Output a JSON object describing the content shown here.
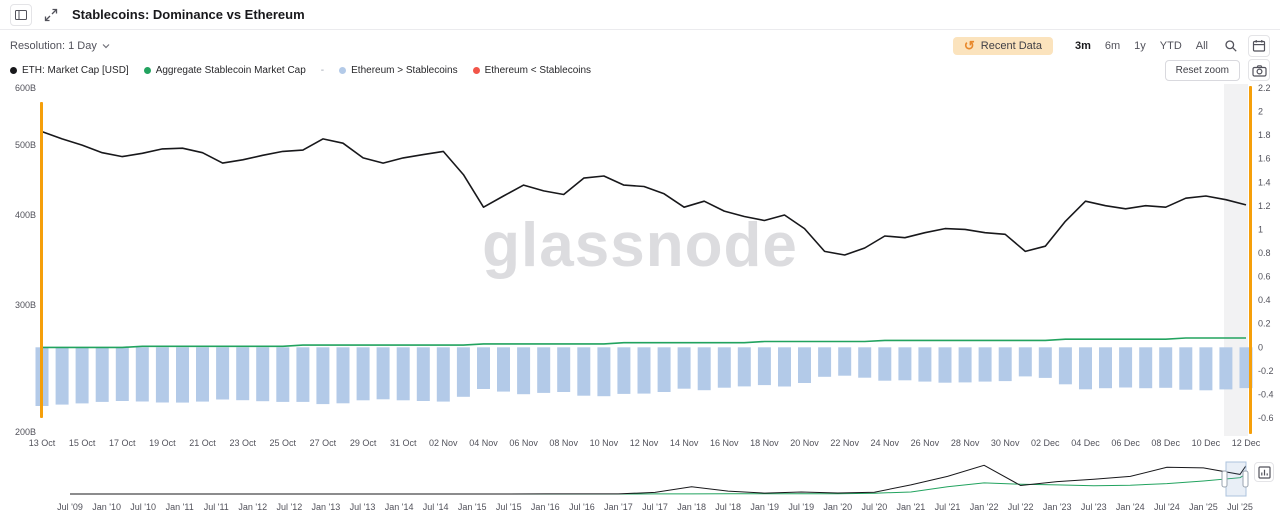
{
  "window": {
    "title": "Stablecoins: Dominance vs Ethereum"
  },
  "toolbar": {
    "resolution_label": "Resolution: 1 Day",
    "recent_data_label": "Recent Data",
    "ranges": [
      "3m",
      "6m",
      "1y",
      "YTD",
      "All"
    ],
    "active_range": "3m"
  },
  "legend": {
    "items": [
      {
        "label": "ETH: Market Cap [USD]",
        "color": "#18181b"
      },
      {
        "label": "Aggregate Stablecoin Market Cap",
        "color": "#22a35f"
      },
      {
        "label": "-",
        "color": "#9ca3af"
      },
      {
        "label": "Ethereum > Stablecoins",
        "color": "#b3cae8"
      },
      {
        "label": "Ethereum < Stablecoins",
        "color": "#f25549"
      }
    ]
  },
  "buttons": {
    "reset_zoom": "Reset zoom"
  },
  "watermark": "glassnode",
  "colors": {
    "accent_orange": "#f59f0a",
    "pill_bg": "#fbe3bd",
    "bar_blue": "#b3cae8",
    "line_green": "#22a35f",
    "line_black": "#18181b",
    "tick_gray": "#52525b",
    "band_gray": "#f2f2f3"
  },
  "chart_data": {
    "type": "line+bar",
    "title": "Stablecoins: Dominance vs Ethereum",
    "main": {
      "dates": [
        "13 Oct",
        "14 Oct",
        "15 Oct",
        "16 Oct",
        "17 Oct",
        "18 Oct",
        "19 Oct",
        "20 Oct",
        "21 Oct",
        "22 Oct",
        "23 Oct",
        "24 Oct",
        "25 Oct",
        "26 Oct",
        "27 Oct",
        "28 Oct",
        "29 Oct",
        "30 Oct",
        "31 Oct",
        "01 Nov",
        "02 Nov",
        "03 Nov",
        "04 Nov",
        "05 Nov",
        "06 Nov",
        "07 Nov",
        "08 Nov",
        "09 Nov",
        "10 Nov",
        "11 Nov",
        "12 Nov",
        "13 Nov",
        "14 Nov",
        "15 Nov",
        "16 Nov",
        "17 Nov",
        "18 Nov",
        "19 Nov",
        "20 Nov",
        "21 Nov",
        "22 Nov",
        "23 Nov",
        "24 Nov",
        "25 Nov",
        "26 Nov",
        "27 Nov",
        "28 Nov",
        "29 Nov",
        "30 Nov",
        "01 Dec",
        "02 Dec",
        "03 Dec",
        "04 Dec",
        "05 Dec",
        "06 Dec",
        "07 Dec",
        "08 Dec",
        "09 Dec",
        "10 Dec",
        "11 Dec",
        "12 Dec"
      ],
      "x_tick_step": 2,
      "left_axis": {
        "scale": "log",
        "unit": "USD billions",
        "tick_labels": [
          "600B",
          "500B",
          "400B",
          "300B",
          "200B"
        ],
        "tick_values": [
          600,
          500,
          400,
          300,
          200
        ],
        "min": 200,
        "max": 600
      },
      "right_axis": {
        "scale": "linear",
        "tick_values": [
          2.2,
          2,
          1.8,
          1.6,
          1.4,
          1.2,
          1,
          0.8,
          0.6,
          0.4,
          0.2,
          0,
          -0.2,
          -0.4,
          -0.6
        ],
        "min": -0.6,
        "max": 2.2
      },
      "series": [
        {
          "name": "ETH: Market Cap [USD]",
          "type": "line",
          "axis": "left",
          "color": "#18181b",
          "values": [
            522,
            510,
            500,
            488,
            482,
            487,
            494,
            495,
            488,
            472,
            477,
            484,
            490,
            492,
            510,
            503,
            480,
            472,
            480,
            485,
            490,
            455,
            410,
            425,
            440,
            432,
            427,
            450,
            453,
            440,
            438,
            428,
            410,
            418,
            405,
            398,
            393,
            400,
            383,
            356,
            352,
            360,
            374,
            372,
            378,
            383,
            382,
            378,
            376,
            356,
            362,
            392,
            418,
            412,
            408,
            412,
            410,
            422,
            425,
            420,
            413
          ]
        },
        {
          "name": "Aggregate Stablecoin Market Cap",
          "type": "line",
          "axis": "left",
          "color": "#22a35f",
          "values": [
            262,
            262,
            262,
            262,
            262,
            263,
            263,
            263,
            263,
            263,
            263,
            263,
            263,
            264,
            264,
            264,
            264,
            264,
            264,
            264,
            264,
            264,
            265,
            265,
            265,
            265,
            265,
            265,
            265,
            266,
            266,
            266,
            266,
            266,
            266,
            266,
            267,
            267,
            267,
            267,
            267,
            267,
            268,
            268,
            268,
            268,
            268,
            268,
            268,
            268,
            268,
            269,
            269,
            269,
            269,
            269,
            269,
            270,
            270,
            270,
            270
          ]
        },
        {
          "name": "Ethereum > Stablecoins",
          "type": "bar",
          "axis": "right",
          "color": "#b3cae8",
          "values": [
            -0.498,
            -0.486,
            -0.476,
            -0.463,
            -0.456,
            -0.46,
            -0.468,
            -0.469,
            -0.461,
            -0.443,
            -0.449,
            -0.457,
            -0.463,
            -0.463,
            -0.482,
            -0.475,
            -0.45,
            -0.441,
            -0.45,
            -0.456,
            -0.461,
            -0.42,
            -0.354,
            -0.376,
            -0.398,
            -0.387,
            -0.379,
            -0.411,
            -0.415,
            -0.395,
            -0.393,
            -0.379,
            -0.351,
            -0.364,
            -0.343,
            -0.332,
            -0.321,
            -0.333,
            -0.303,
            -0.25,
            -0.241,
            -0.258,
            -0.283,
            -0.28,
            -0.291,
            -0.3,
            -0.298,
            -0.291,
            -0.287,
            -0.247,
            -0.26,
            -0.314,
            -0.356,
            -0.347,
            -0.341,
            -0.347,
            -0.344,
            -0.36,
            -0.365,
            -0.357,
            -0.346
          ]
        },
        {
          "name": "Ethereum < Stablecoins",
          "type": "bar",
          "axis": "right",
          "color": "#f25549",
          "values": []
        }
      ]
    },
    "navigator": {
      "labels": [
        "Jul '09",
        "Jan '10",
        "Jul '10",
        "Jan '11",
        "Jul '11",
        "Jan '12",
        "Jul '12",
        "Jan '13",
        "Jul '13",
        "Jan '14",
        "Jul '14",
        "Jan '15",
        "Jul '15",
        "Jan '16",
        "Jul '16",
        "Jan '17",
        "Jul '17",
        "Jan '18",
        "Jul '18",
        "Jan '19",
        "Jul '19",
        "Jan '20",
        "Jul '20",
        "Jan '21",
        "Jul '21",
        "Jan '22",
        "Jul '22",
        "Jan '23",
        "Jul '23",
        "Jan '24",
        "Jul '24",
        "Jan '25",
        "Jul '25"
      ],
      "eth": [
        0,
        0,
        0,
        0,
        0,
        0,
        0,
        0,
        0,
        0,
        0,
        0,
        0.5,
        1,
        1,
        2,
        25,
        110,
        45,
        14,
        30,
        15,
        27,
        140,
        270,
        440,
        130,
        190,
        225,
        270,
        410,
        400,
        300,
        434
      ],
      "stablecoins": [
        0,
        0,
        0,
        0,
        0,
        0,
        0,
        0,
        0,
        0,
        0,
        0,
        0,
        0,
        0,
        0,
        1,
        2,
        3,
        3,
        4,
        5,
        12,
        30,
        110,
        170,
        150,
        140,
        125,
        135,
        160,
        200,
        250,
        307
      ]
    }
  }
}
